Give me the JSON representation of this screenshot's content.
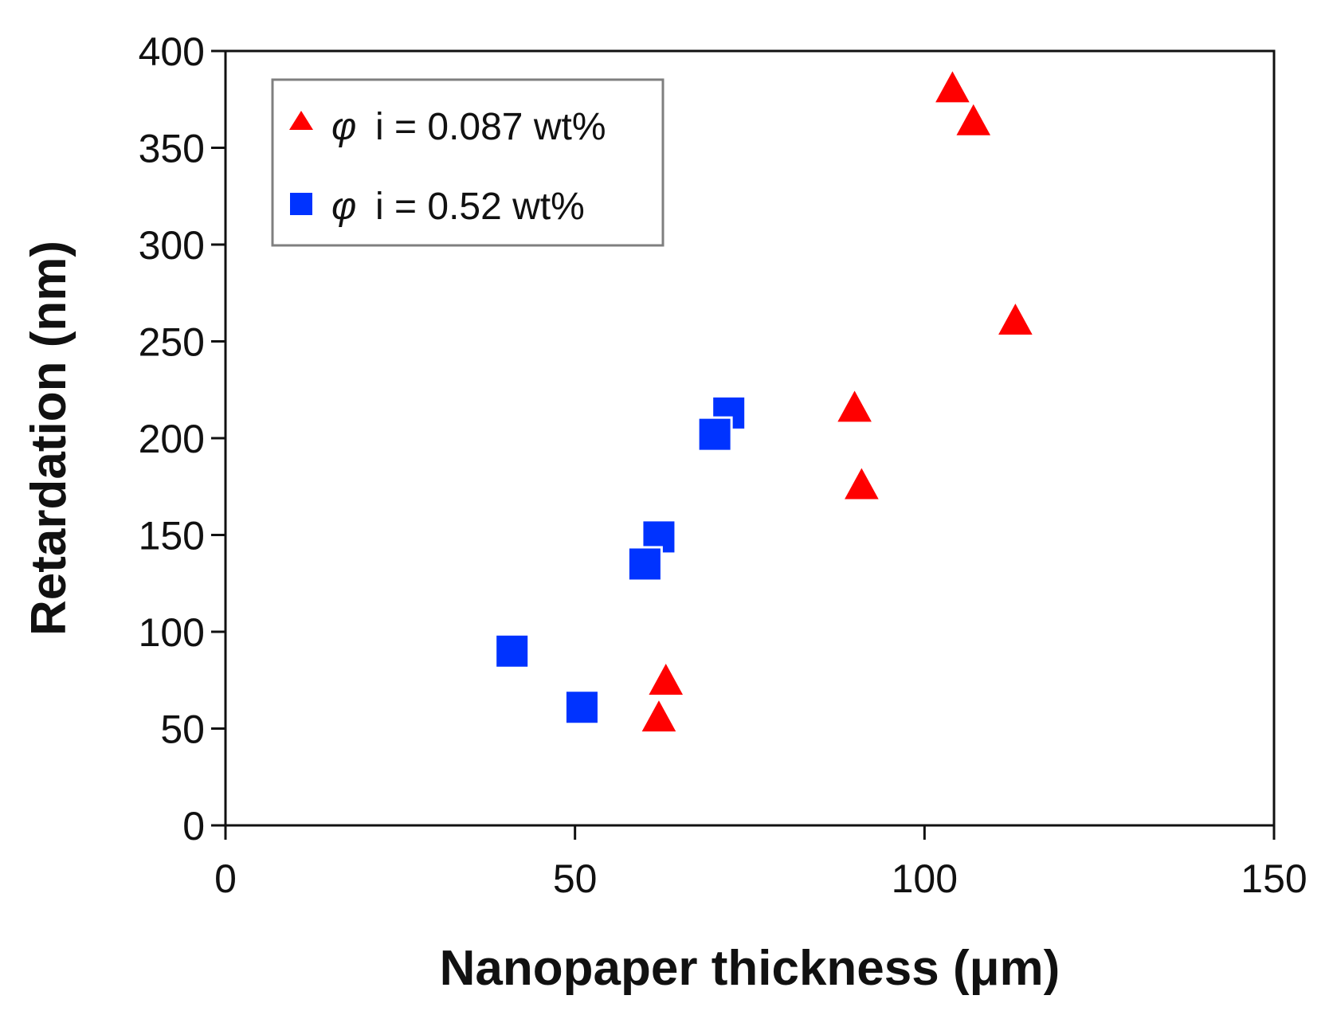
{
  "chart_data": {
    "type": "scatter",
    "title": "",
    "xlabel": "Nanopaper thickness (μm)",
    "ylabel": "Retardation (nm)",
    "xlim": [
      0,
      150
    ],
    "ylim": [
      0,
      400
    ],
    "xticks": [
      0,
      50,
      100,
      150
    ],
    "yticks": [
      0,
      50,
      100,
      150,
      200,
      250,
      300,
      350,
      400
    ],
    "grid": false,
    "legend_position": "top-left",
    "series": [
      {
        "name": "φ i = 0.087 wt%",
        "legend_symbol": "φ",
        "legend_text": "i = 0.087 wt%",
        "marker": "triangle",
        "color": "#ff0000",
        "points": [
          {
            "x": 104,
            "y": 380
          },
          {
            "x": 107,
            "y": 363
          },
          {
            "x": 113,
            "y": 260
          },
          {
            "x": 90,
            "y": 215
          },
          {
            "x": 91,
            "y": 175
          },
          {
            "x": 63,
            "y": 74
          },
          {
            "x": 62,
            "y": 55
          }
        ]
      },
      {
        "name": "φ i = 0.52 wt%",
        "legend_symbol": "φ",
        "legend_text": "i = 0.52 wt%",
        "marker": "square",
        "color": "#0033ff",
        "points": [
          {
            "x": 72,
            "y": 213
          },
          {
            "x": 70,
            "y": 202
          },
          {
            "x": 62,
            "y": 149
          },
          {
            "x": 60,
            "y": 135
          },
          {
            "x": 41,
            "y": 90
          },
          {
            "x": 51,
            "y": 61
          }
        ]
      }
    ]
  }
}
